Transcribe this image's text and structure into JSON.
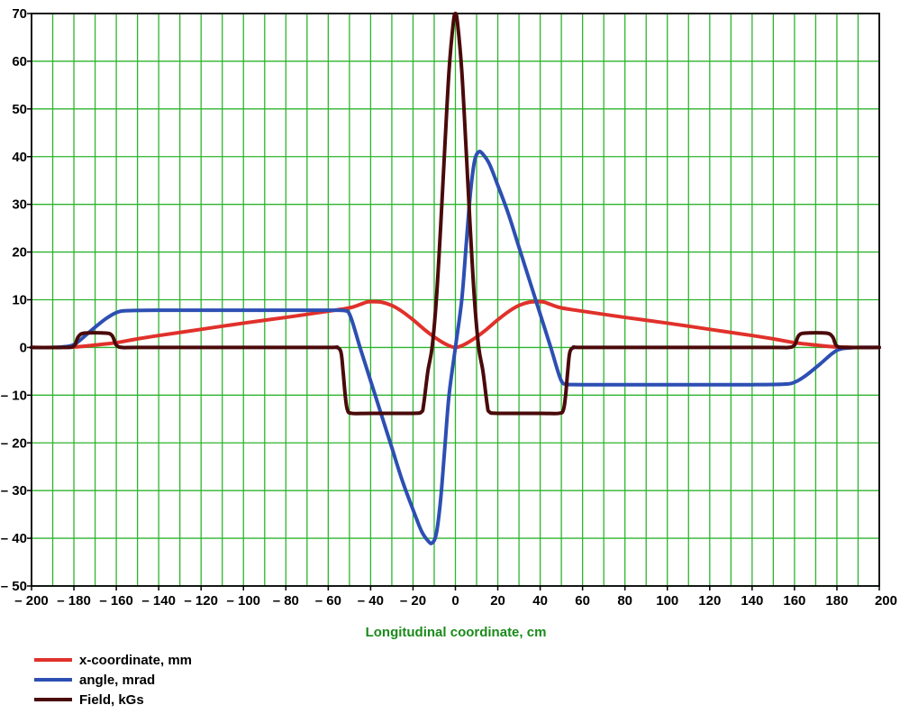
{
  "chart_data": {
    "type": "line",
    "title": "",
    "xlabel": "Longitudinal coordinate, cm",
    "ylabel": "",
    "xlim": [
      -200,
      200
    ],
    "ylim": [
      -50,
      70
    ],
    "x_ticks": [
      -200,
      -180,
      -160,
      -140,
      -120,
      -100,
      -80,
      -60,
      -40,
      -20,
      0,
      20,
      40,
      60,
      80,
      100,
      120,
      140,
      160,
      180,
      200
    ],
    "x_tick_labels": [
      "– 200",
      "– 180",
      "– 160",
      "– 140",
      "– 120",
      "– 100",
      "– 80",
      "– 60",
      "– 40",
      "– 20",
      "0",
      "20",
      "40",
      "60",
      "80",
      "100",
      "120",
      "140",
      "160",
      "180",
      "200"
    ],
    "y_ticks": [
      -50,
      -40,
      -30,
      -20,
      -10,
      0,
      10,
      20,
      30,
      40,
      50,
      60,
      70
    ],
    "y_tick_labels": [
      "– 50",
      "– 40",
      "– 30",
      "– 20",
      "– 10",
      "0",
      "10",
      "20",
      "30",
      "40",
      "50",
      "60",
      "70"
    ],
    "x_minor_step": 10,
    "grid": true,
    "grid_color": "#2db52d",
    "xlabel_color": "#1a8a1a",
    "legend_position": "bottom-left",
    "series": [
      {
        "name": "x-coordinate, mm",
        "color": "#e0312b",
        "points": [
          [
            -200,
            0
          ],
          [
            -190,
            0
          ],
          [
            -180,
            0.1
          ],
          [
            -170,
            0.5
          ],
          [
            -160,
            1.0
          ],
          [
            -150,
            1.8
          ],
          [
            -140,
            2.5
          ],
          [
            -120,
            3.8
          ],
          [
            -100,
            5.1
          ],
          [
            -80,
            6.3
          ],
          [
            -60,
            7.6
          ],
          [
            -50,
            8.3
          ],
          [
            -45,
            9.0
          ],
          [
            -42,
            9.5
          ],
          [
            -40,
            9.6
          ],
          [
            -35,
            9.5
          ],
          [
            -30,
            8.8
          ],
          [
            -25,
            7.5
          ],
          [
            -20,
            5.8
          ],
          [
            -15,
            3.9
          ],
          [
            -10,
            2.2
          ],
          [
            -5,
            0.8
          ],
          [
            0,
            0
          ],
          [
            5,
            0.8
          ],
          [
            10,
            2.2
          ],
          [
            15,
            3.9
          ],
          [
            20,
            5.8
          ],
          [
            25,
            7.5
          ],
          [
            30,
            8.8
          ],
          [
            35,
            9.5
          ],
          [
            40,
            9.6
          ],
          [
            42,
            9.5
          ],
          [
            45,
            9.0
          ],
          [
            50,
            8.3
          ],
          [
            60,
            7.6
          ],
          [
            80,
            6.3
          ],
          [
            100,
            5.1
          ],
          [
            120,
            3.8
          ],
          [
            140,
            2.5
          ],
          [
            150,
            1.8
          ],
          [
            160,
            1.0
          ],
          [
            170,
            0.5
          ],
          [
            180,
            0.1
          ],
          [
            190,
            0
          ],
          [
            200,
            0
          ]
        ]
      },
      {
        "name": "angle, mrad",
        "color": "#2d4fb3",
        "points": [
          [
            -200,
            0
          ],
          [
            -190,
            0
          ],
          [
            -182,
            0.3
          ],
          [
            -178,
            1.2
          ],
          [
            -172,
            3.5
          ],
          [
            -165,
            6.0
          ],
          [
            -160,
            7.3
          ],
          [
            -155,
            7.7
          ],
          [
            -140,
            7.8
          ],
          [
            -100,
            7.8
          ],
          [
            -60,
            7.8
          ],
          [
            -52,
            7.7
          ],
          [
            -50,
            7.0
          ],
          [
            -48,
            4.5
          ],
          [
            -45,
            0
          ],
          [
            -40,
            -7.0
          ],
          [
            -35,
            -14.0
          ],
          [
            -30,
            -21.0
          ],
          [
            -25,
            -28.0
          ],
          [
            -20,
            -34.0
          ],
          [
            -16,
            -38.5
          ],
          [
            -13,
            -40.5
          ],
          [
            -11,
            -41.0
          ],
          [
            -9,
            -39.0
          ],
          [
            -7,
            -32.0
          ],
          [
            -5,
            -21.0
          ],
          [
            -3,
            -10.0
          ],
          [
            0,
            0
          ],
          [
            3,
            10.0
          ],
          [
            5,
            21.0
          ],
          [
            7,
            32.0
          ],
          [
            9,
            39.0
          ],
          [
            11,
            41.0
          ],
          [
            13,
            40.5
          ],
          [
            16,
            38.5
          ],
          [
            20,
            34.0
          ],
          [
            25,
            28.0
          ],
          [
            30,
            21.0
          ],
          [
            35,
            14.0
          ],
          [
            40,
            7.0
          ],
          [
            45,
            0
          ],
          [
            48,
            -4.5
          ],
          [
            50,
            -7.0
          ],
          [
            52,
            -7.7
          ],
          [
            60,
            -7.8
          ],
          [
            100,
            -7.8
          ],
          [
            140,
            -7.8
          ],
          [
            155,
            -7.7
          ],
          [
            160,
            -7.3
          ],
          [
            165,
            -6.0
          ],
          [
            172,
            -3.5
          ],
          [
            178,
            -1.2
          ],
          [
            182,
            -0.3
          ],
          [
            190,
            0
          ],
          [
            200,
            0
          ]
        ]
      },
      {
        "name": "Field, kGs",
        "color": "#4a0a0a",
        "points": [
          [
            -200,
            0
          ],
          [
            -185,
            0
          ],
          [
            -180,
            0.3
          ],
          [
            -178,
            2.2
          ],
          [
            -175,
            3.0
          ],
          [
            -165,
            3.0
          ],
          [
            -162,
            2.5
          ],
          [
            -160,
            0.5
          ],
          [
            -157,
            0
          ],
          [
            -150,
            0
          ],
          [
            -100,
            0
          ],
          [
            -60,
            0
          ],
          [
            -56,
            0
          ],
          [
            -54,
            -1.0
          ],
          [
            -53,
            -5.0
          ],
          [
            -52,
            -10.0
          ],
          [
            -51,
            -13.0
          ],
          [
            -49,
            -13.8
          ],
          [
            -40,
            -13.8
          ],
          [
            -20,
            -13.8
          ],
          [
            -16,
            -13.5
          ],
          [
            -15,
            -12.0
          ],
          [
            -13,
            -5.0
          ],
          [
            -11,
            0
          ],
          [
            -9,
            10.0
          ],
          [
            -7,
            25.0
          ],
          [
            -5,
            42.0
          ],
          [
            -3,
            58.0
          ],
          [
            -1,
            68.0
          ],
          [
            0,
            70.0
          ],
          [
            1,
            68.0
          ],
          [
            3,
            58.0
          ],
          [
            5,
            42.0
          ],
          [
            7,
            25.0
          ],
          [
            9,
            10.0
          ],
          [
            11,
            0
          ],
          [
            13,
            -5.0
          ],
          [
            15,
            -12.0
          ],
          [
            16,
            -13.5
          ],
          [
            20,
            -13.8
          ],
          [
            40,
            -13.8
          ],
          [
            49,
            -13.8
          ],
          [
            51,
            -13.0
          ],
          [
            52,
            -10.0
          ],
          [
            53,
            -5.0
          ],
          [
            54,
            -1.0
          ],
          [
            56,
            0
          ],
          [
            60,
            0
          ],
          [
            100,
            0
          ],
          [
            150,
            0
          ],
          [
            157,
            0
          ],
          [
            160,
            0.5
          ],
          [
            162,
            2.5
          ],
          [
            165,
            3.0
          ],
          [
            175,
            3.0
          ],
          [
            178,
            2.2
          ],
          [
            180,
            0.3
          ],
          [
            185,
            0
          ],
          [
            200,
            0
          ]
        ]
      }
    ]
  }
}
